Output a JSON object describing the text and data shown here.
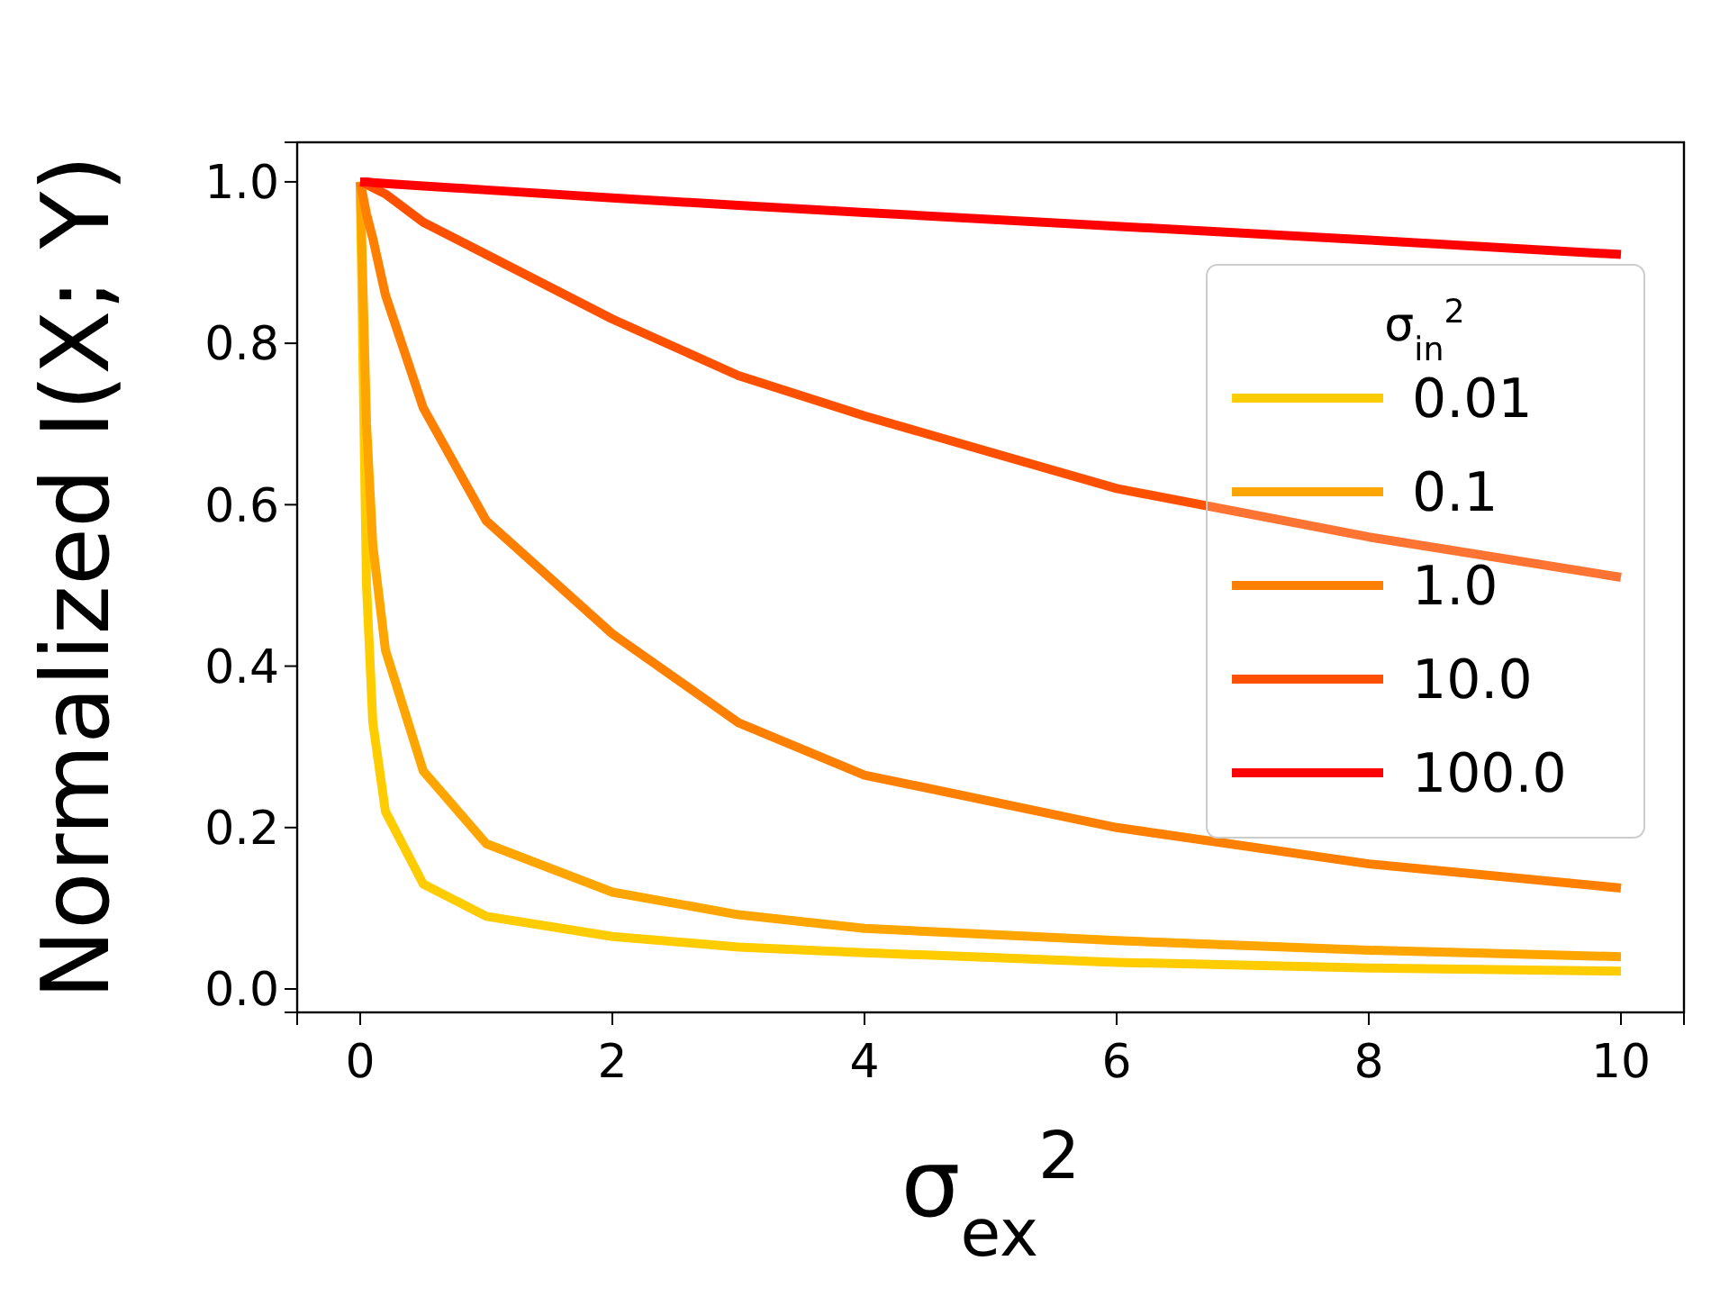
{
  "chart_data": {
    "type": "line",
    "xlabel": "σ$_{ex}$$^{2}$",
    "ylabel": "Normalized I(X; Y)",
    "legend_title": "σ$_{in}$$^{2}$",
    "xlim": [
      -0.5,
      10.5
    ],
    "ylim": [
      -0.029,
      1.049
    ],
    "xticks": [
      0,
      2,
      4,
      6,
      8,
      10
    ],
    "yticks": [
      {
        "value": 0,
        "label": "0.0"
      },
      {
        "value": 0.2,
        "label": "0.2"
      },
      {
        "value": 0.4,
        "label": "0.4"
      },
      {
        "value": 0.6,
        "label": "0.6"
      },
      {
        "value": 0.8,
        "label": "0.8"
      },
      {
        "value": 1,
        "label": "1.0"
      }
    ],
    "grid": false,
    "legend": "right",
    "marker": "none",
    "line_style": "solid",
    "x": [
      0,
      0.05,
      0.1,
      0.2,
      0.5,
      1,
      2,
      3,
      4,
      6,
      8,
      10
    ],
    "series": [
      {
        "name": "0.01",
        "color": "#ffcc00",
        "values": [
          1,
          0.5,
          0.33,
          0.22,
          0.13,
          0.09,
          0.065,
          0.052,
          0.045,
          0.033,
          0.026,
          0.022
        ]
      },
      {
        "name": "0.1",
        "color": "#ffa500",
        "values": [
          1,
          0.7,
          0.55,
          0.42,
          0.27,
          0.18,
          0.12,
          0.092,
          0.075,
          0.06,
          0.048,
          0.04
        ]
      },
      {
        "name": "1.0",
        "color": "#ff8000",
        "values": [
          1,
          0.96,
          0.93,
          0.86,
          0.72,
          0.58,
          0.44,
          0.33,
          0.265,
          0.2,
          0.155,
          0.125
        ]
      },
      {
        "name": "10.0",
        "color": "#ff5000",
        "values": [
          1,
          0.997,
          0.993,
          0.985,
          0.95,
          0.91,
          0.83,
          0.76,
          0.71,
          0.62,
          0.56,
          0.51
        ]
      },
      {
        "name": "100.0",
        "color": "#ff0000",
        "values": [
          1,
          1,
          0.999,
          0.998,
          0.995,
          0.99,
          0.98,
          0.971,
          0.962,
          0.945,
          0.928,
          0.91
        ]
      }
    ]
  }
}
